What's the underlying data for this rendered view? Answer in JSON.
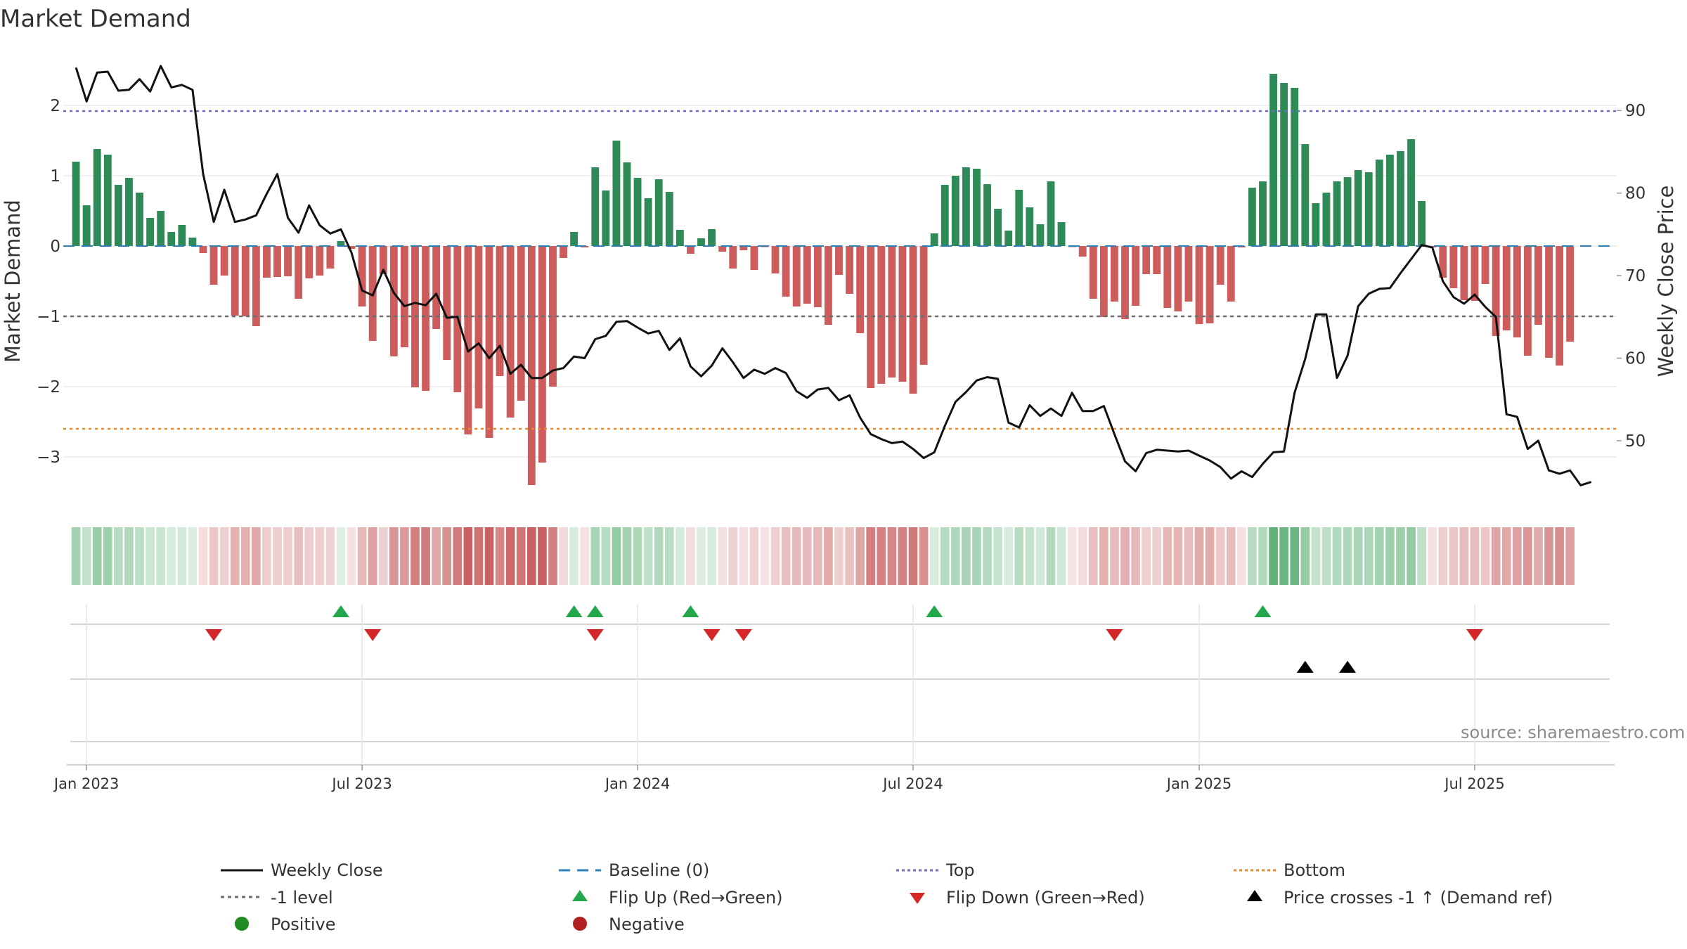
{
  "chart_data": {
    "type": "bar",
    "title": "Market Demand",
    "ylabel": "Market Demand",
    "y2label": "Weekly Close Price",
    "ylim": [
      -3.65,
      2.75
    ],
    "y2lim": [
      42.5,
      97.0
    ],
    "yticks": [
      {
        "v": 2,
        "label": "2"
      },
      {
        "v": 1,
        "label": "1"
      },
      {
        "v": 0,
        "label": "0"
      },
      {
        "v": -1,
        "label": "−1"
      },
      {
        "v": -2,
        "label": "−2"
      },
      {
        "v": -3,
        "label": "−3"
      }
    ],
    "y2ticks": [
      {
        "v": 90,
        "label": "90"
      },
      {
        "v": 80,
        "label": "80"
      },
      {
        "v": 70,
        "label": "70"
      },
      {
        "v": 60,
        "label": "60"
      },
      {
        "v": 50,
        "label": "50"
      }
    ],
    "x_range": [
      -1.2,
      145.4
    ],
    "x_ticks": [
      {
        "week": 1,
        "label": "Jan 2023"
      },
      {
        "week": 27,
        "label": "Jul 2023"
      },
      {
        "week": 53,
        "label": "Jan 2024"
      },
      {
        "week": 79,
        "label": "Jul 2024"
      },
      {
        "week": 106,
        "label": "Jan 2025"
      },
      {
        "week": 132,
        "label": "Jul 2025"
      }
    ],
    "demand": [
      1.2,
      0.58,
      1.38,
      1.3,
      0.87,
      0.97,
      0.76,
      0.4,
      0.5,
      0.2,
      0.3,
      0.12,
      -0.1,
      -0.55,
      -0.42,
      -0.99,
      -1.0,
      -1.14,
      -0.45,
      -0.44,
      -0.43,
      -0.75,
      -0.46,
      -0.42,
      -0.32,
      0.07,
      -0.04,
      -0.86,
      -1.35,
      -0.4,
      -1.57,
      -1.44,
      -2.01,
      -2.06,
      -1.18,
      -1.62,
      -2.08,
      -2.68,
      -2.31,
      -2.73,
      -1.85,
      -2.44,
      -2.2,
      -3.4,
      -3.08,
      -2.0,
      -0.17,
      0.2,
      -0.02,
      1.12,
      0.79,
      1.5,
      1.19,
      0.97,
      0.68,
      0.95,
      0.77,
      0.23,
      -0.11,
      0.11,
      0.24,
      -0.08,
      -0.32,
      -0.06,
      -0.34,
      -0.01,
      -0.39,
      -0.72,
      -0.86,
      -0.82,
      -0.87,
      -1.12,
      -0.41,
      -0.68,
      -1.24,
      -2.02,
      -1.96,
      -1.87,
      -1.93,
      -2.1,
      -1.69,
      0.18,
      0.87,
      1.0,
      1.12,
      1.1,
      0.88,
      0.53,
      0.22,
      0.8,
      0.55,
      0.31,
      0.92,
      0.34,
      -0.01,
      -0.15,
      -0.75,
      -1.01,
      -0.79,
      -1.04,
      -0.85,
      -0.4,
      -0.4,
      -0.88,
      -0.93,
      -0.79,
      -1.11,
      -1.1,
      -0.55,
      -0.79,
      -0.02,
      0.83,
      0.92,
      2.45,
      2.32,
      2.25,
      1.45,
      0.61,
      0.76,
      0.92,
      0.98,
      1.08,
      1.05,
      1.23,
      1.3,
      1.35,
      1.52,
      0.64,
      -0.02,
      -0.45,
      -0.6,
      -0.77,
      -0.78,
      -0.54,
      -1.28,
      -1.2,
      -1.3,
      -1.56,
      -1.12,
      -1.59,
      -1.7,
      -1.36
    ],
    "close": [
      95.2,
      91.1,
      94.6,
      94.7,
      92.4,
      92.5,
      93.8,
      92.3,
      95.4,
      92.8,
      93.1,
      92.5,
      82.3,
      76.5,
      80.4,
      76.5,
      76.8,
      77.3,
      79.9,
      82.3,
      77.0,
      75.2,
      78.5,
      76.1,
      75.1,
      75.6,
      72.8,
      68.2,
      67.6,
      70.7,
      67.9,
      66.3,
      66.7,
      66.4,
      67.8,
      64.9,
      65.0,
      60.8,
      61.8,
      60.0,
      61.5,
      58.1,
      59.2,
      57.6,
      57.6,
      58.5,
      58.8,
      60.2,
      60.0,
      62.3,
      62.7,
      64.4,
      64.5,
      63.7,
      63.0,
      63.3,
      61.0,
      62.4,
      59.0,
      57.8,
      59.1,
      61.2,
      59.5,
      57.6,
      58.6,
      58.1,
      58.8,
      58.2,
      56.0,
      55.2,
      56.2,
      56.4,
      54.9,
      55.5,
      52.8,
      50.8,
      50.2,
      49.7,
      49.9,
      49.0,
      47.9,
      48.6,
      51.8,
      54.7,
      55.9,
      57.3,
      57.7,
      57.5,
      52.2,
      51.6,
      54.3,
      53.0,
      53.9,
      53.0,
      55.8,
      53.6,
      53.6,
      54.2,
      50.8,
      47.5,
      46.3,
      48.5,
      48.9,
      48.8,
      48.7,
      48.8,
      48.2,
      47.6,
      46.8,
      45.4,
      46.3,
      45.6,
      47.2,
      48.6,
      48.7,
      55.8,
      59.9,
      65.3,
      65.3,
      57.6,
      60.3,
      66.3,
      67.8,
      68.4,
      68.5,
      70.3,
      72.0,
      73.7,
      73.4,
      69.3,
      67.4,
      66.6,
      67.7,
      66.2,
      65.0,
      53.2,
      52.9,
      49.0,
      50.0,
      46.4,
      46.0,
      46.4,
      44.6,
      45.0
    ],
    "reference_lines": [
      {
        "name": "Top",
        "value": 1.92,
        "color": "#6b6bc4"
      },
      {
        "name": "-1 level",
        "value": -1.0,
        "color": "#6e6e6e"
      },
      {
        "name": "Bottom",
        "value": -2.6,
        "color": "#e88a2c"
      },
      {
        "name": "Baseline (0)",
        "value": 0.0,
        "color": "#2c7fb8"
      }
    ],
    "flip_up_weeks": [
      25,
      47,
      49,
      58,
      81,
      112
    ],
    "flip_down_weeks": [
      13,
      28,
      49,
      60,
      63,
      98,
      132
    ],
    "price_cross_weeks": [
      116,
      120
    ],
    "positive_color": "#2e8b57",
    "negative_color": "#cd5c5c",
    "legend": [
      {
        "key": "weekly-close",
        "label": "Weekly Close"
      },
      {
        "key": "baseline",
        "label": "Baseline (0)"
      },
      {
        "key": "top",
        "label": "Top"
      },
      {
        "key": "bottom",
        "label": "Bottom"
      },
      {
        "key": "minus-one",
        "label": "-1 level"
      },
      {
        "key": "flip-up",
        "label": "Flip Up (Red→Green)"
      },
      {
        "key": "flip-down",
        "label": "Flip Down (Green→Red)"
      },
      {
        "key": "price-cross",
        "label": "Price crosses -1 ↑ (Demand ref)"
      },
      {
        "key": "positive",
        "label": "Positive"
      },
      {
        "key": "negative",
        "label": "Negative"
      }
    ],
    "source": "source: sharemaestro.com"
  }
}
